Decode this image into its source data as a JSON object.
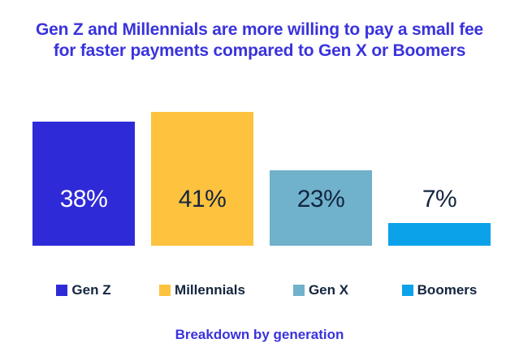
{
  "title": {
    "line1": "Gen Z and Millennials are more willing to pay a small fee",
    "line2": "for faster payments compared to Gen X or Boomers"
  },
  "caption": "Breakdown by generation",
  "colors": {
    "title_blue": "#3a33dc",
    "dark_text": "#14253f",
    "background": "#ffffff"
  },
  "chart_data": {
    "type": "bar",
    "title": "Gen Z and Millennials are more willing to pay a small fee for faster payments compared to Gen X or Boomers",
    "subtitle": "Breakdown by generation",
    "categories": [
      "Gen Z",
      "Millennials",
      "Gen X",
      "Boomers"
    ],
    "values": [
      38,
      41,
      23,
      7
    ],
    "value_labels": [
      "38%",
      "41%",
      "23%",
      "7%"
    ],
    "bar_colors": [
      "#2e2ad8",
      "#fdc23e",
      "#70b1cb",
      "#0ca2ea"
    ],
    "value_label_colors": [
      "#ffffff",
      "#14253f",
      "#14253f",
      "#14253f"
    ],
    "xlabel": "",
    "ylabel": "",
    "ylim": [
      0,
      45
    ],
    "grid": false,
    "axes_visible": false,
    "legend_position": "bottom"
  },
  "legend": {
    "items": [
      {
        "label": "Gen Z",
        "color": "#2e2ad8"
      },
      {
        "label": "Millennials",
        "color": "#fdc23e"
      },
      {
        "label": "Gen X",
        "color": "#70b1cb"
      },
      {
        "label": "Boomers",
        "color": "#0ca2ea"
      }
    ]
  }
}
